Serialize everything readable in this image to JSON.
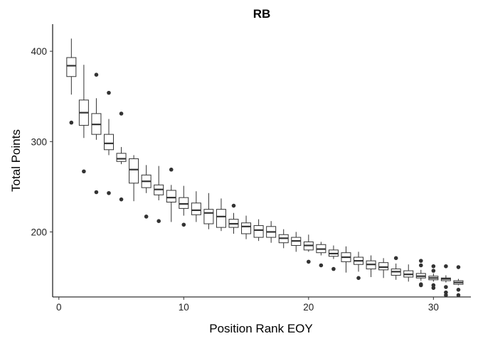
{
  "chart_data": {
    "type": "box",
    "title": "RB",
    "xlabel": "Position Rank EOY",
    "ylabel": "Total Points",
    "xlim": [
      -0.5,
      33.0
    ],
    "ylim": [
      128,
      430
    ],
    "xticks": [
      0,
      10,
      20,
      30
    ],
    "yticks": [
      200,
      300,
      400
    ],
    "grid": false,
    "legend": "none",
    "colors": {
      "box_fill": "#ffffff",
      "box_stroke": "#333333",
      "axis": "#000000"
    },
    "boxes": [
      {
        "x": 1,
        "min": 352,
        "q1": 372,
        "median": 384,
        "q3": 393,
        "max": 414,
        "outliers": [
          321
        ]
      },
      {
        "x": 2,
        "min": 304,
        "q1": 318,
        "median": 332,
        "q3": 346,
        "max": 385,
        "outliers": [
          267
        ]
      },
      {
        "x": 3,
        "min": 302,
        "q1": 308,
        "median": 319,
        "q3": 331,
        "max": 348,
        "outliers": [
          374,
          244
        ]
      },
      {
        "x": 4,
        "min": 285,
        "q1": 291,
        "median": 298,
        "q3": 308,
        "max": 325,
        "outliers": [
          354,
          243
        ]
      },
      {
        "x": 5,
        "min": 275,
        "q1": 278,
        "median": 281,
        "q3": 287,
        "max": 294,
        "outliers": [
          331,
          236
        ]
      },
      {
        "x": 6,
        "min": 234,
        "q1": 254,
        "median": 269,
        "q3": 281,
        "max": 285,
        "outliers": []
      },
      {
        "x": 7,
        "min": 243,
        "q1": 249,
        "median": 256,
        "q3": 263,
        "max": 274,
        "outliers": [
          217
        ]
      },
      {
        "x": 8,
        "min": 235,
        "q1": 241,
        "median": 247,
        "q3": 252,
        "max": 273,
        "outliers": [
          212
        ]
      },
      {
        "x": 9,
        "min": 211,
        "q1": 233,
        "median": 238,
        "q3": 246,
        "max": 252,
        "outliers": [
          269
        ]
      },
      {
        "x": 10,
        "min": 218,
        "q1": 226,
        "median": 231,
        "q3": 238,
        "max": 251,
        "outliers": [
          208
        ]
      },
      {
        "x": 11,
        "min": 211,
        "q1": 219,
        "median": 224,
        "q3": 232,
        "max": 245,
        "outliers": []
      },
      {
        "x": 12,
        "min": 203,
        "q1": 209,
        "median": 221,
        "q3": 225,
        "max": 243,
        "outliers": []
      },
      {
        "x": 13,
        "min": 201,
        "q1": 205,
        "median": 217,
        "q3": 225,
        "max": 237,
        "outliers": []
      },
      {
        "x": 14,
        "min": 198,
        "q1": 205,
        "median": 209,
        "q3": 214,
        "max": 221,
        "outliers": [
          229
        ]
      },
      {
        "x": 15,
        "min": 192,
        "q1": 198,
        "median": 206,
        "q3": 210,
        "max": 218,
        "outliers": []
      },
      {
        "x": 16,
        "min": 190,
        "q1": 194,
        "median": 202,
        "q3": 207,
        "max": 214,
        "outliers": []
      },
      {
        "x": 17,
        "min": 188,
        "q1": 194,
        "median": 200,
        "q3": 206,
        "max": 212,
        "outliers": []
      },
      {
        "x": 18,
        "min": 182,
        "q1": 188,
        "median": 193,
        "q3": 197,
        "max": 203,
        "outliers": []
      },
      {
        "x": 19,
        "min": 178,
        "q1": 185,
        "median": 190,
        "q3": 194,
        "max": 200,
        "outliers": []
      },
      {
        "x": 20,
        "min": 178,
        "q1": 180,
        "median": 185,
        "q3": 189,
        "max": 197,
        "outliers": [
          167
        ]
      },
      {
        "x": 21,
        "min": 174,
        "q1": 177,
        "median": 181,
        "q3": 186,
        "max": 189,
        "outliers": [
          163
        ]
      },
      {
        "x": 22,
        "min": 170,
        "q1": 173,
        "median": 176,
        "q3": 180,
        "max": 185,
        "outliers": [
          159
        ]
      },
      {
        "x": 23,
        "min": 155,
        "q1": 167,
        "median": 172,
        "q3": 177,
        "max": 184,
        "outliers": []
      },
      {
        "x": 24,
        "min": 156,
        "q1": 164,
        "median": 168,
        "q3": 172,
        "max": 178,
        "outliers": [
          149
        ]
      },
      {
        "x": 25,
        "min": 150,
        "q1": 159,
        "median": 164,
        "q3": 168,
        "max": 174,
        "outliers": []
      },
      {
        "x": 26,
        "min": 149,
        "q1": 158,
        "median": 161,
        "q3": 166,
        "max": 171,
        "outliers": []
      },
      {
        "x": 27,
        "min": 147,
        "q1": 152,
        "median": 156,
        "q3": 159,
        "max": 165,
        "outliers": [
          171
        ]
      },
      {
        "x": 28,
        "min": 145,
        "q1": 150,
        "median": 153,
        "q3": 157,
        "max": 164,
        "outliers": []
      },
      {
        "x": 29,
        "min": 146,
        "q1": 149,
        "median": 151,
        "q3": 154,
        "max": 158,
        "outliers": [
          168,
          163,
          142,
          141
        ]
      },
      {
        "x": 30,
        "min": 145,
        "q1": 147,
        "median": 149,
        "q3": 151,
        "max": 154,
        "outliers": [
          162,
          157,
          141,
          138
        ]
      },
      {
        "x": 31,
        "min": 144,
        "q1": 146,
        "median": 148,
        "q3": 149,
        "max": 152,
        "outliers": [
          162,
          139,
          133,
          130
        ]
      },
      {
        "x": 32,
        "min": 141,
        "q1": 142,
        "median": 144,
        "q3": 146,
        "max": 148,
        "outliers": [
          161,
          136,
          130
        ]
      }
    ]
  }
}
